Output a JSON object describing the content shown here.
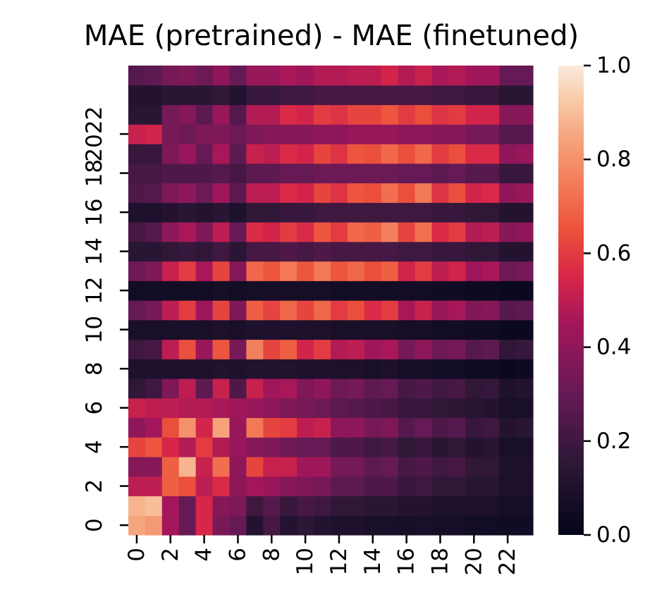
{
  "chart_data": {
    "type": "heatmap",
    "title": "MAE (pretrained) - MAE (finetuned)",
    "x_tick_labels": [
      "0",
      "2",
      "4",
      "6",
      "8",
      "10",
      "12",
      "14",
      "16",
      "18",
      "20",
      "22"
    ],
    "y_tick_labels": [
      "0",
      "2",
      "4",
      "6",
      "8",
      "10",
      "12",
      "14",
      "16",
      "18",
      "2022"
    ],
    "colorbar": {
      "min": 0.0,
      "max": 1.0,
      "ticks": [
        0.0,
        0.2,
        0.4,
        0.6,
        0.8,
        1.0
      ],
      "tick_labels": [
        "0.0",
        "0.2",
        "0.4",
        "0.6",
        "0.8",
        "1.0"
      ]
    },
    "grid": false,
    "n_rows": 24,
    "n_cols": 24,
    "values": [
      [
        0.85,
        0.82,
        0.45,
        0.3,
        0.55,
        0.35,
        0.3,
        0.12,
        0.22,
        0.12,
        0.15,
        0.12,
        0.1,
        0.1,
        0.08,
        0.08,
        0.07,
        0.08,
        0.07,
        0.07,
        0.06,
        0.06,
        0.05,
        0.05
      ],
      [
        0.88,
        0.9,
        0.45,
        0.3,
        0.55,
        0.38,
        0.36,
        0.2,
        0.26,
        0.18,
        0.22,
        0.2,
        0.16,
        0.16,
        0.14,
        0.14,
        0.12,
        0.12,
        0.1,
        0.1,
        0.09,
        0.09,
        0.07,
        0.07
      ],
      [
        0.5,
        0.5,
        0.68,
        0.64,
        0.5,
        0.56,
        0.4,
        0.45,
        0.42,
        0.38,
        0.36,
        0.34,
        0.28,
        0.28,
        0.24,
        0.24,
        0.18,
        0.2,
        0.16,
        0.16,
        0.13,
        0.13,
        0.09,
        0.09
      ],
      [
        0.38,
        0.38,
        0.68,
        0.88,
        0.52,
        0.72,
        0.4,
        0.62,
        0.52,
        0.52,
        0.44,
        0.44,
        0.34,
        0.34,
        0.28,
        0.3,
        0.22,
        0.24,
        0.2,
        0.22,
        0.16,
        0.16,
        0.1,
        0.1
      ],
      [
        0.62,
        0.66,
        0.55,
        0.48,
        0.6,
        0.48,
        0.42,
        0.38,
        0.36,
        0.32,
        0.3,
        0.3,
        0.24,
        0.24,
        0.2,
        0.22,
        0.16,
        0.18,
        0.14,
        0.16,
        0.12,
        0.13,
        0.08,
        0.08
      ],
      [
        0.4,
        0.45,
        0.64,
        0.8,
        0.54,
        0.84,
        0.42,
        0.74,
        0.62,
        0.6,
        0.5,
        0.52,
        0.4,
        0.4,
        0.34,
        0.36,
        0.26,
        0.3,
        0.24,
        0.26,
        0.18,
        0.2,
        0.12,
        0.14
      ],
      [
        0.52,
        0.5,
        0.5,
        0.48,
        0.48,
        0.46,
        0.44,
        0.42,
        0.4,
        0.36,
        0.34,
        0.32,
        0.28,
        0.26,
        0.24,
        0.22,
        0.18,
        0.18,
        0.16,
        0.15,
        0.13,
        0.12,
        0.08,
        0.08
      ],
      [
        0.16,
        0.2,
        0.36,
        0.5,
        0.28,
        0.52,
        0.24,
        0.52,
        0.44,
        0.46,
        0.36,
        0.4,
        0.32,
        0.34,
        0.28,
        0.3,
        0.22,
        0.24,
        0.2,
        0.22,
        0.16,
        0.17,
        0.1,
        0.12
      ],
      [
        0.1,
        0.1,
        0.1,
        0.1,
        0.1,
        0.11,
        0.1,
        0.12,
        0.11,
        0.11,
        0.1,
        0.1,
        0.09,
        0.09,
        0.08,
        0.09,
        0.07,
        0.07,
        0.06,
        0.06,
        0.05,
        0.05,
        0.03,
        0.04
      ],
      [
        0.2,
        0.22,
        0.5,
        0.64,
        0.42,
        0.66,
        0.34,
        0.76,
        0.62,
        0.68,
        0.54,
        0.6,
        0.48,
        0.5,
        0.44,
        0.46,
        0.34,
        0.4,
        0.32,
        0.34,
        0.26,
        0.28,
        0.16,
        0.18
      ],
      [
        0.08,
        0.08,
        0.08,
        0.08,
        0.08,
        0.09,
        0.08,
        0.1,
        0.1,
        0.1,
        0.09,
        0.09,
        0.08,
        0.08,
        0.08,
        0.08,
        0.07,
        0.07,
        0.06,
        0.06,
        0.05,
        0.05,
        0.03,
        0.03
      ],
      [
        0.3,
        0.34,
        0.5,
        0.6,
        0.44,
        0.62,
        0.36,
        0.68,
        0.62,
        0.7,
        0.62,
        0.7,
        0.6,
        0.64,
        0.56,
        0.6,
        0.46,
        0.52,
        0.42,
        0.46,
        0.36,
        0.38,
        0.26,
        0.28
      ],
      [
        0.06,
        0.06,
        0.06,
        0.06,
        0.06,
        0.07,
        0.06,
        0.07,
        0.07,
        0.07,
        0.07,
        0.07,
        0.06,
        0.06,
        0.06,
        0.06,
        0.06,
        0.06,
        0.05,
        0.05,
        0.04,
        0.04,
        0.03,
        0.03
      ],
      [
        0.32,
        0.36,
        0.52,
        0.6,
        0.46,
        0.62,
        0.38,
        0.7,
        0.66,
        0.74,
        0.66,
        0.74,
        0.66,
        0.7,
        0.64,
        0.68,
        0.54,
        0.6,
        0.5,
        0.54,
        0.44,
        0.46,
        0.32,
        0.34
      ],
      [
        0.14,
        0.14,
        0.16,
        0.18,
        0.16,
        0.2,
        0.14,
        0.22,
        0.22,
        0.24,
        0.22,
        0.24,
        0.22,
        0.22,
        0.22,
        0.22,
        0.2,
        0.2,
        0.18,
        0.18,
        0.16,
        0.16,
        0.12,
        0.12
      ],
      [
        0.22,
        0.26,
        0.4,
        0.46,
        0.36,
        0.5,
        0.3,
        0.56,
        0.54,
        0.6,
        0.56,
        0.66,
        0.6,
        0.7,
        0.68,
        0.76,
        0.62,
        0.72,
        0.56,
        0.6,
        0.48,
        0.5,
        0.38,
        0.4
      ],
      [
        0.1,
        0.1,
        0.12,
        0.14,
        0.12,
        0.14,
        0.1,
        0.16,
        0.16,
        0.18,
        0.18,
        0.2,
        0.2,
        0.2,
        0.2,
        0.2,
        0.2,
        0.2,
        0.18,
        0.18,
        0.16,
        0.16,
        0.12,
        0.12
      ],
      [
        0.24,
        0.26,
        0.36,
        0.4,
        0.32,
        0.44,
        0.28,
        0.5,
        0.5,
        0.56,
        0.54,
        0.62,
        0.58,
        0.66,
        0.64,
        0.72,
        0.64,
        0.74,
        0.58,
        0.64,
        0.54,
        0.56,
        0.4,
        0.42
      ],
      [
        0.22,
        0.22,
        0.24,
        0.24,
        0.24,
        0.26,
        0.22,
        0.28,
        0.28,
        0.3,
        0.3,
        0.32,
        0.32,
        0.32,
        0.32,
        0.32,
        0.3,
        0.3,
        0.28,
        0.3,
        0.26,
        0.26,
        0.18,
        0.18
      ],
      [
        0.18,
        0.18,
        0.36,
        0.42,
        0.3,
        0.46,
        0.28,
        0.52,
        0.5,
        0.56,
        0.54,
        0.62,
        0.58,
        0.66,
        0.64,
        0.7,
        0.64,
        0.7,
        0.6,
        0.64,
        0.56,
        0.56,
        0.4,
        0.42
      ],
      [
        0.52,
        0.54,
        0.34,
        0.32,
        0.36,
        0.36,
        0.32,
        0.36,
        0.38,
        0.38,
        0.38,
        0.4,
        0.4,
        0.42,
        0.42,
        0.42,
        0.4,
        0.4,
        0.38,
        0.38,
        0.34,
        0.34,
        0.26,
        0.26
      ],
      [
        0.14,
        0.14,
        0.34,
        0.38,
        0.28,
        0.42,
        0.26,
        0.48,
        0.48,
        0.56,
        0.54,
        0.6,
        0.58,
        0.62,
        0.62,
        0.66,
        0.6,
        0.64,
        0.58,
        0.6,
        0.54,
        0.54,
        0.38,
        0.38
      ],
      [
        0.12,
        0.12,
        0.14,
        0.14,
        0.14,
        0.16,
        0.12,
        0.18,
        0.18,
        0.2,
        0.2,
        0.22,
        0.22,
        0.22,
        0.22,
        0.22,
        0.22,
        0.22,
        0.2,
        0.2,
        0.18,
        0.18,
        0.14,
        0.14
      ],
      [
        0.26,
        0.28,
        0.34,
        0.36,
        0.32,
        0.4,
        0.3,
        0.42,
        0.42,
        0.46,
        0.44,
        0.48,
        0.48,
        0.5,
        0.5,
        0.54,
        0.48,
        0.52,
        0.46,
        0.48,
        0.44,
        0.44,
        0.3,
        0.3
      ]
    ]
  }
}
